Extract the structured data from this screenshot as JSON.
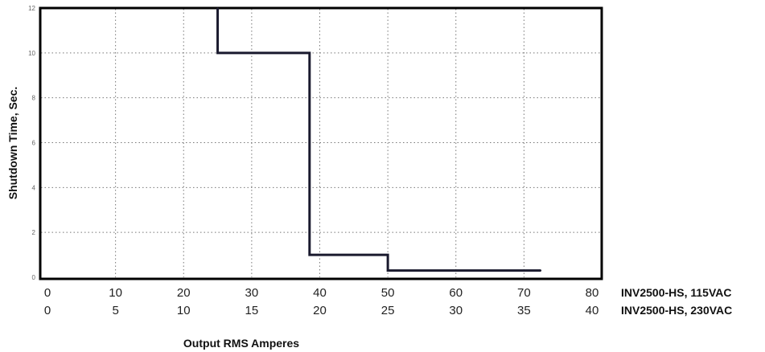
{
  "chart_data": {
    "type": "line",
    "title": "",
    "ylabel": "Shutdown Time, Sec.",
    "xlabel": "Output RMS Amperes",
    "ylim": [
      0,
      12
    ],
    "y_ticks": [
      0,
      2,
      4,
      6,
      8,
      10,
      12
    ],
    "xlim": [
      0,
      80
    ],
    "x_ticks": [
      0,
      10,
      20,
      30,
      40,
      50,
      60,
      70,
      80
    ],
    "secondary_x_ticks": [
      0,
      5,
      10,
      15,
      20,
      25,
      30,
      35,
      40
    ],
    "axis_row_labels": [
      "INV2500-HS, 115VAC",
      "INV2500-HS, 230VAC"
    ],
    "grid": true,
    "series": [
      {
        "x": [
          25,
          25,
          38.5,
          38.5,
          50,
          50,
          72.5
        ],
        "y": [
          12,
          10,
          10,
          1,
          1,
          0.3,
          0.3
        ]
      }
    ]
  }
}
